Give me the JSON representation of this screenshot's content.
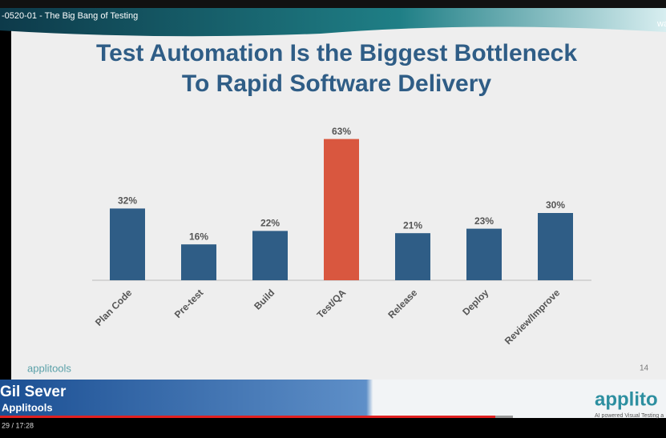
{
  "video": {
    "title": "-0520-01 - The Big Bang of Testing",
    "channel": "wa",
    "time": "29 / 17:28"
  },
  "slide": {
    "logo": "applitools",
    "page": "14"
  },
  "lower_third": {
    "name": "Gil Sever",
    "company": "Applitools",
    "logo": "applito",
    "tagline": "AI powered Visual Testing a"
  },
  "chart_data": {
    "type": "bar",
    "title": "Test Automation Is the Biggest Bottleneck",
    "subtitle": "To Rapid Software Delivery",
    "categories": [
      "Plan Code",
      "Pre-test",
      "Build",
      "Test/QA",
      "Release",
      "Deploy",
      "Review/Improve"
    ],
    "values": [
      32,
      16,
      22,
      63,
      21,
      23,
      30
    ],
    "value_labels": [
      "32%",
      "16%",
      "22%",
      "63%",
      "21%",
      "23%",
      "30%"
    ],
    "colors": [
      "#2f5d86",
      "#2f5d86",
      "#2f5d86",
      "#d9573f",
      "#2f5d86",
      "#2f5d86",
      "#2f5d86"
    ]
  }
}
